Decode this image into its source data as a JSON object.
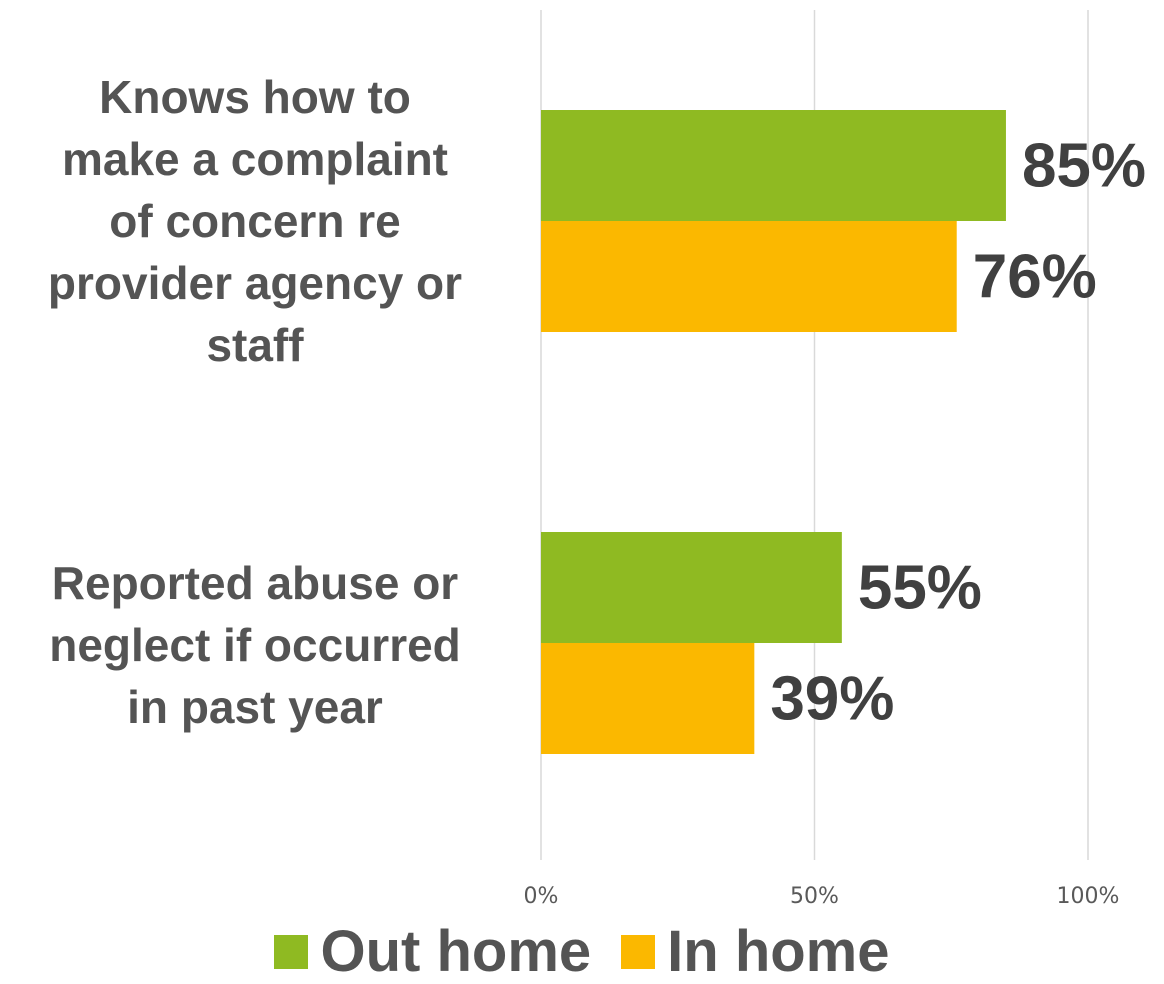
{
  "chart_data": {
    "type": "bar",
    "orientation": "horizontal",
    "categories": [
      "Knows how to make a complaint of concern re provider agency or staff",
      "Reported abuse or neglect if occurred in past year"
    ],
    "category_lines": [
      [
        "Knows how to",
        "make a complaint",
        "of concern re",
        "provider agency or",
        "staff"
      ],
      [
        "Reported abuse or",
        "neglect if occurred",
        "in past year"
      ]
    ],
    "series": [
      {
        "name": "Out home",
        "values": [
          85,
          55
        ],
        "color": "#8fba22"
      },
      {
        "name": "In home",
        "values": [
          76,
          39
        ],
        "color": "#fbb800"
      }
    ],
    "value_labels": [
      [
        "85%",
        "55%"
      ],
      [
        "76%",
        "39%"
      ]
    ],
    "xlim": [
      0,
      100
    ],
    "x_ticks": [
      0,
      50,
      100
    ],
    "x_tick_labels": [
      "0%",
      "50%",
      "100%"
    ],
    "grid": true,
    "legend": "bottom",
    "title": "",
    "xlabel": "",
    "ylabel": ""
  }
}
